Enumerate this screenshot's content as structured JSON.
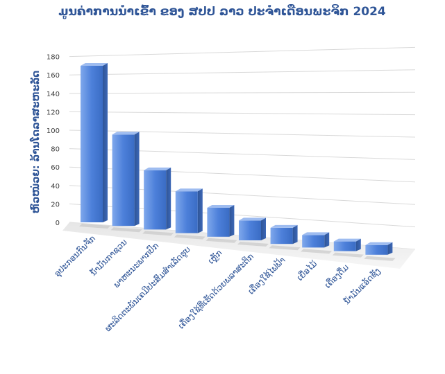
{
  "chart_data": {
    "type": "bar",
    "title": "ມູນຄ່າການນຳເຂົ້າ ຂອງ ສປປ ລາວ ປະຈຳເດືອນພະຈິກ 2024",
    "xlabel": "",
    "ylabel": "ຫົວໜ່ວຍ: ລ້ານໂດລາສະຫະລັດ",
    "ylim": [
      0,
      180
    ],
    "yticks": [
      "0",
      "20",
      "40",
      "60",
      "80",
      "100",
      "120",
      "140",
      "160",
      "180"
    ],
    "grid": true,
    "style": "3d-column",
    "bar_color": "#4f81d8",
    "categories": [
      "ອຸປະກອນກົນຈັກ",
      "ນ້ຳມັນກາຊວນ",
      "ພາຫະນະພາກປົກ",
      "ຜະລິດຕະພັນເຄມີປະສົມສຳເລັດຮູບ",
      "ເຫຼັກ",
      "ເຄື່ອງໃຊ້ທີ່ເຮັດດ້ວຍພລາສະຕິກ",
      "ເຄື່ອງໃຊ້ໄຟຟ້າ",
      "ເຍື່ອໄມ້",
      "ເຄື່ອງດື່ມ",
      "ນ້ຳມັນແອັດຊັງ"
    ],
    "values": [
      160,
      89,
      54,
      35,
      21,
      11,
      7,
      3,
      0,
      0
    ]
  }
}
